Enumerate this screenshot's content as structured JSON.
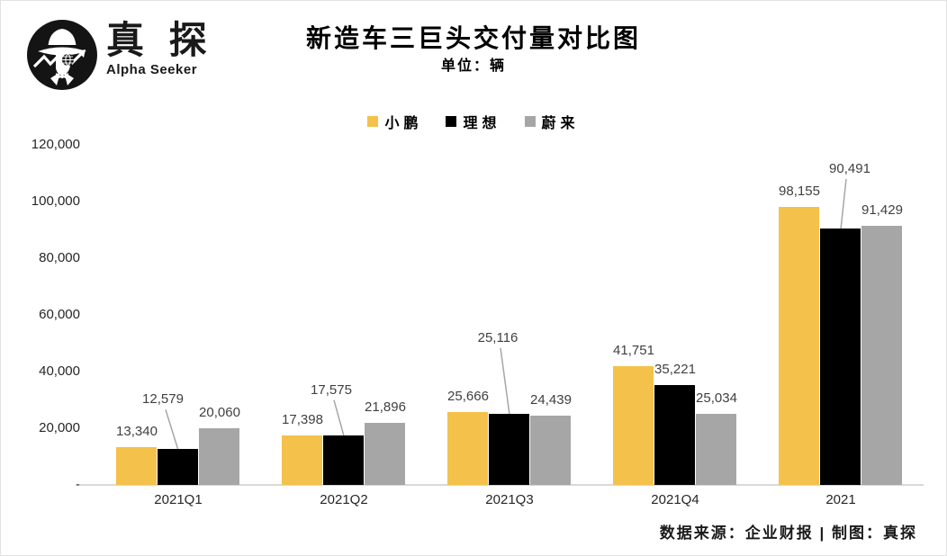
{
  "logo": {
    "brand_cn": "真 探",
    "brand_en": "Alpha Seeker"
  },
  "header": {
    "title": "新造车三巨头交付量对比图",
    "subtitle": "单位：辆"
  },
  "chart_data": {
    "type": "bar",
    "title": "新造车三巨头交付量对比图",
    "unit_label": "单位：辆",
    "categories": [
      "2021Q1",
      "2021Q2",
      "2021Q3",
      "2021Q4",
      "2021"
    ],
    "series": [
      {
        "name": "小鹏",
        "color": "#F4C14A",
        "values": [
          13340,
          17398,
          25666,
          41751,
          98155
        ]
      },
      {
        "name": "理想",
        "color": "#000000",
        "values": [
          12579,
          17575,
          25116,
          35221,
          90491
        ]
      },
      {
        "name": "蔚来",
        "color": "#A6A6A6",
        "values": [
          20060,
          21896,
          24439,
          25034,
          91429
        ]
      }
    ],
    "value_labels": [
      [
        "13,340",
        "17,398",
        "25,666",
        "41,751",
        "98,155"
      ],
      [
        "12,579",
        "17,575",
        "25,116",
        "35,221",
        "90,491"
      ],
      [
        "20,060",
        "21,896",
        "24,439",
        "25,034",
        "91,429"
      ]
    ],
    "ylim": [
      0,
      120000
    ],
    "ytick_step": 20000,
    "ytick_labels": [
      "-",
      "20,000",
      "40,000",
      "60,000",
      "80,000",
      "100,000",
      "120,000"
    ],
    "grid": false,
    "legend_position": "top-center",
    "callouts": {
      "series": "理想",
      "points": [
        0,
        1,
        2,
        4
      ]
    },
    "leader_line_color": "#A6A6A6",
    "axis_line_color": "#D9D9D9"
  },
  "footer": {
    "source": "数据来源：企业财报 | 制图：真探"
  }
}
